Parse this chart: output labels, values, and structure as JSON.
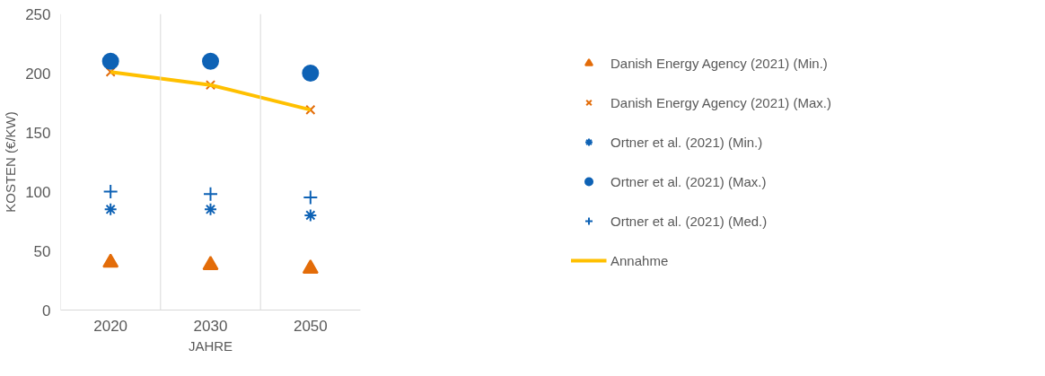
{
  "chart_data": {
    "type": "scatter",
    "xlabel": "JAHRE",
    "ylabel": "KOSTEN (€/KW)",
    "categories": [
      "2020",
      "2030",
      "2050"
    ],
    "series": [
      {
        "name": "Danish Energy Agency (2021) (Min.)",
        "color": "#e36c09",
        "marker": "triangle",
        "values": [
          40,
          38,
          35
        ]
      },
      {
        "name": "Danish Energy Agency (2021) (Max.)",
        "color": "#e36c09",
        "marker": "x",
        "values": [
          201,
          190,
          169
        ]
      },
      {
        "name": "Ortner et al. (2021) (Min.)",
        "color": "#0e62b5",
        "values": [
          85,
          85,
          80
        ]
      },
      {
        "name": "Ortner et al. (2021) (Max.)",
        "color": "#0e62b5",
        "marker": "circle",
        "values": [
          210,
          210,
          200
        ]
      },
      {
        "name": "Ortner et al. (2021) (Med.)",
        "color": "#0e62b5",
        "marker": "cross",
        "values": [
          100,
          98,
          95
        ]
      },
      {
        "name": "Annahme",
        "color": "#ffc000",
        "type": "line",
        "marker": "none",
        "values": [
          201,
          190,
          169
        ]
      }
    ],
    "ylim": [
      0,
      250
    ],
    "yticks": [
      0,
      50,
      100,
      150,
      200,
      250
    ],
    "grid": "x",
    "legend": "right"
  }
}
